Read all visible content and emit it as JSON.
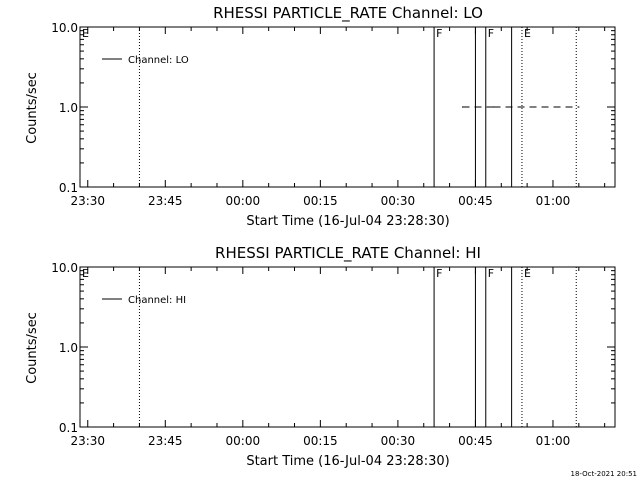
{
  "chart_data": [
    {
      "type": "line",
      "title": "RHESSI PARTICLE_RATE Channel: LO",
      "xlabel": "Start Time (16-Jul-04 23:28:30)",
      "ylabel": "Counts/sec",
      "y_scale": "log",
      "ylim": [
        0.1,
        10.0
      ],
      "yticks": [
        {
          "value": 0.1,
          "label": "0.1"
        },
        {
          "value": 1.0,
          "label": "1.0"
        },
        {
          "value": 10.0,
          "label": "10.0"
        }
      ],
      "xlim": [
        "23:28:30",
        "01:12:00"
      ],
      "xticks": [
        {
          "value": "23:30",
          "label": "23:30"
        },
        {
          "value": "23:45",
          "label": "23:45"
        },
        {
          "value": "00:00",
          "label": "00:00"
        },
        {
          "value": "00:15",
          "label": "00:15"
        },
        {
          "value": "00:30",
          "label": "00:30"
        },
        {
          "value": "00:45",
          "label": "00:45"
        },
        {
          "value": "01:00",
          "label": "01:00"
        }
      ],
      "series": [
        {
          "name": "Channel: LO",
          "points": [
            {
              "x": "00:42:30",
              "y": 1.0
            },
            {
              "x": "00:48:30",
              "y": 1.0
            },
            {
              "x": "01:05:00",
              "y": 1.0
            }
          ]
        }
      ],
      "legend_position": "top-left",
      "annotations": [
        {
          "time": "23:28:30",
          "style": "none",
          "label": "E"
        },
        {
          "time": "23:40:00",
          "style": "dotted",
          "label": ""
        },
        {
          "time": "00:37:00",
          "style": "solid",
          "label": "F"
        },
        {
          "time": "00:45:00",
          "style": "solid",
          "label": ""
        },
        {
          "time": "00:47:00",
          "style": "solid",
          "label": "F"
        },
        {
          "time": "00:52:00",
          "style": "solid",
          "label": ""
        },
        {
          "time": "00:54:00",
          "style": "dotted",
          "label": "E"
        },
        {
          "time": "01:04:30",
          "style": "dotted",
          "label": ""
        }
      ]
    },
    {
      "type": "line",
      "title": "RHESSI PARTICLE_RATE Channel: HI",
      "xlabel": "Start Time (16-Jul-04 23:28:30)",
      "ylabel": "Counts/sec",
      "y_scale": "log",
      "ylim": [
        0.1,
        10.0
      ],
      "yticks": [
        {
          "value": 0.1,
          "label": "0.1"
        },
        {
          "value": 1.0,
          "label": "1.0"
        },
        {
          "value": 10.0,
          "label": "10.0"
        }
      ],
      "xlim": [
        "23:28:30",
        "01:12:00"
      ],
      "xticks": [
        {
          "value": "23:30",
          "label": "23:30"
        },
        {
          "value": "23:45",
          "label": "23:45"
        },
        {
          "value": "00:00",
          "label": "00:00"
        },
        {
          "value": "00:15",
          "label": "00:15"
        },
        {
          "value": "00:30",
          "label": "00:30"
        },
        {
          "value": "00:45",
          "label": "00:45"
        },
        {
          "value": "01:00",
          "label": "01:00"
        }
      ],
      "series": [
        {
          "name": "Channel: HI",
          "points": []
        }
      ],
      "legend_position": "top-left",
      "annotations": [
        {
          "time": "23:28:30",
          "style": "none",
          "label": "E"
        },
        {
          "time": "23:40:00",
          "style": "dotted",
          "label": ""
        },
        {
          "time": "00:37:00",
          "style": "solid",
          "label": "F"
        },
        {
          "time": "00:45:00",
          "style": "solid",
          "label": ""
        },
        {
          "time": "00:47:00",
          "style": "solid",
          "label": "F"
        },
        {
          "time": "00:52:00",
          "style": "solid",
          "label": ""
        },
        {
          "time": "00:54:00",
          "style": "dotted",
          "label": "E"
        },
        {
          "time": "01:04:30",
          "style": "dotted",
          "label": ""
        }
      ]
    }
  ],
  "footer": {
    "stamp": "18-Oct-2021 20:51"
  },
  "colors": {
    "background": "#ffffff",
    "foreground": "#000000"
  }
}
